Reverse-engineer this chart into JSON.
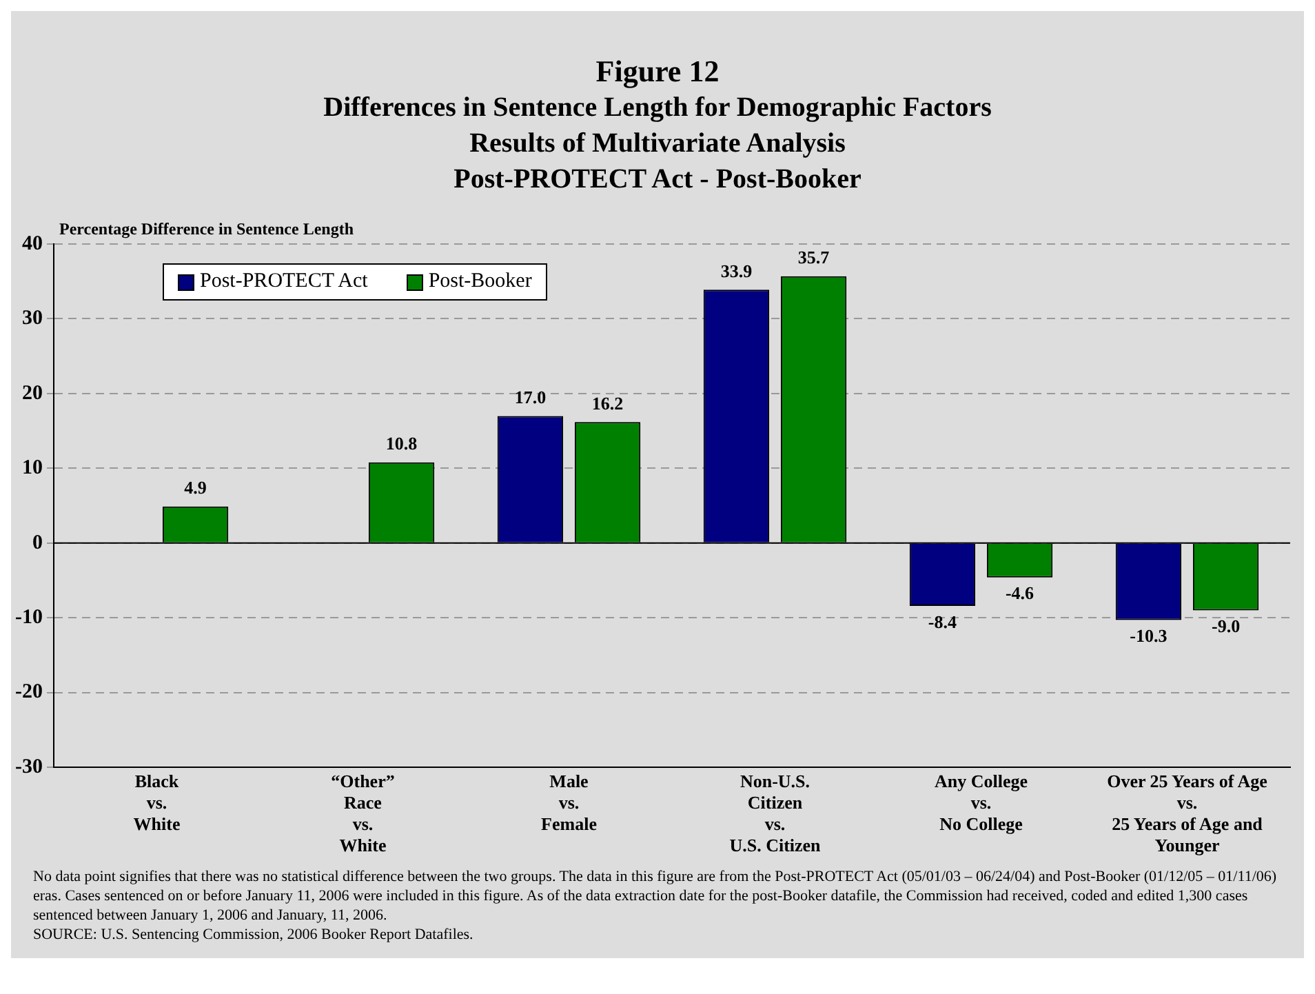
{
  "chart_data": {
    "type": "bar",
    "title": "Figure 12",
    "subtitle": "Differences in Sentence Length for Demographic Factors\nResults of Multivariate Analysis\nPost-PROTECT Act - Post-Booker",
    "ylabel": "Percentage Difference in Sentence Length",
    "categories": [
      "Black\nvs.\nWhite",
      "“Other”\nRace\nvs.\nWhite",
      "Male\nvs.\nFemale",
      "Non-U.S.\nCitizen\nvs.\nU.S. Citizen",
      "Any College\nvs.\nNo College",
      "Over 25 Years of Age\nvs.\n25 Years of Age and\nYounger"
    ],
    "series": [
      {
        "name": "Post-PROTECT Act",
        "color": "#000080",
        "values": [
          null,
          null,
          17.0,
          33.9,
          -8.4,
          -10.3
        ],
        "value_labels": [
          null,
          null,
          "17.0",
          "33.9",
          "-8.4",
          "-10.3"
        ]
      },
      {
        "name": "Post-Booker",
        "color": "#008000",
        "values": [
          4.9,
          10.8,
          16.2,
          35.7,
          -4.6,
          -9.0
        ],
        "value_labels": [
          "4.9",
          "10.8",
          "16.2",
          "35.7",
          "-4.6",
          "-9.0"
        ]
      }
    ],
    "ref_lines": [
      {
        "axis": "y",
        "value": 0,
        "color": "#000000"
      }
    ],
    "ylim": [
      -30,
      40
    ],
    "yticks": [
      -30,
      -20,
      -10,
      0,
      10,
      20,
      30,
      40
    ],
    "grid": "y",
    "legend": "top left",
    "annotations": [
      "No data point signifies that there was no statistical difference between the two groups. The data in this figure are from the Post-PROTECT Act (05/01/03 – 06/24/04) and Post-Booker (01/12/05 – 01/11/06) eras. Cases sentenced on or before January 11, 2006 were included in this figure. As of the data extraction date for the post-Booker datafile, the Commission had received, coded and edited 1,300 cases sentenced between January 1, 2006 and January, 11, 2006.",
      "SOURCE: U.S. Sentencing Commission, 2006 Booker Report Datafiles."
    ]
  }
}
